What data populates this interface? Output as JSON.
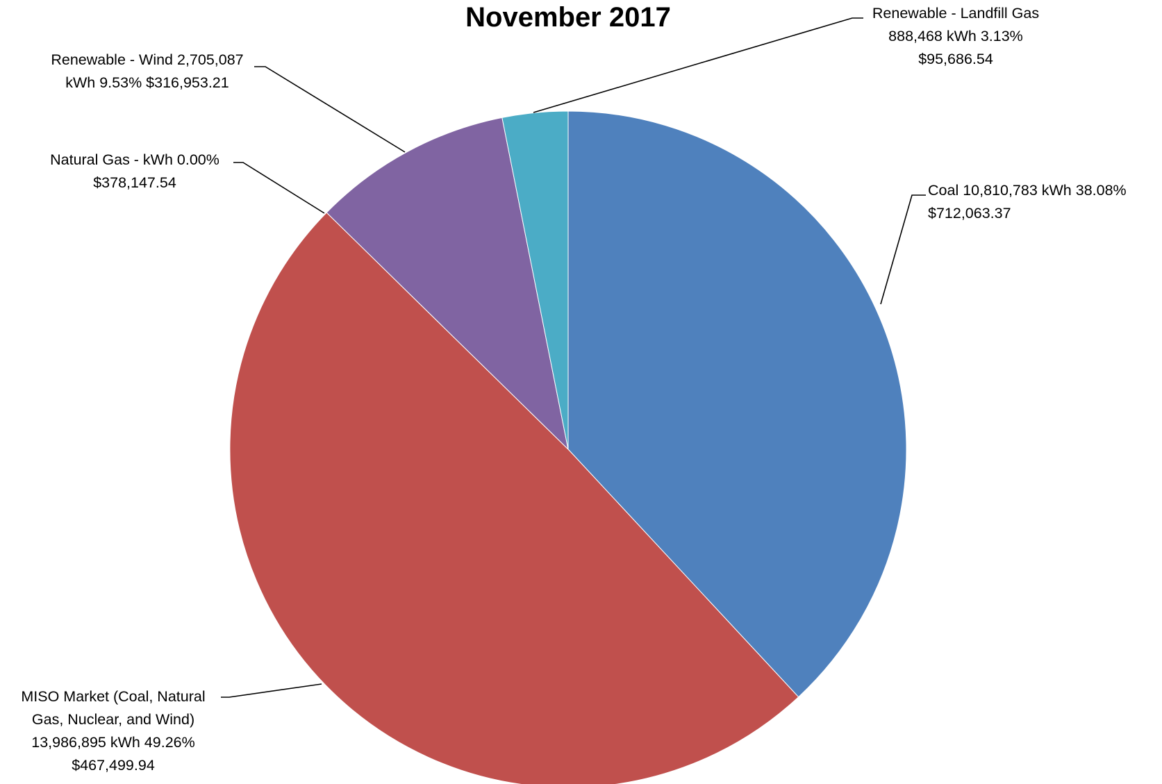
{
  "chart_data": {
    "type": "pie",
    "title": "November 2017",
    "start_angle_deg": 0,
    "direction": "clockwise",
    "slices": [
      {
        "name": "Coal",
        "kwh": 10810783,
        "percent": 38.08,
        "cost": 712063.37,
        "color": "#4F81BD",
        "label_lines": [
          "Coal  10,810,783  kWh 38.08%",
          "$712,063.37"
        ]
      },
      {
        "name": "MISO Market (Coal, Natural Gas, Nuclear, and Wind)",
        "kwh": 13986895,
        "percent": 49.26,
        "cost": 467499.94,
        "color": "#C0504D",
        "label_lines": [
          "MISO Market (Coal, Natural",
          "Gas, Nuclear, and Wind)",
          "13,986,895  kWh 49.26%",
          "$467,499.94"
        ]
      },
      {
        "name": "Natural Gas",
        "kwh": 0,
        "percent": 0.0,
        "cost": 378147.54,
        "color": "#9BBB59",
        "label_lines": [
          "Natural Gas  -  kWh 0.00%",
          "$378,147.54"
        ]
      },
      {
        "name": "Renewable - Wind",
        "kwh": 2705087,
        "percent": 9.53,
        "cost": 316953.21,
        "color": "#8064A2",
        "label_lines": [
          "Renewable - Wind  2,705,087",
          "kWh 9.53%  $316,953.21"
        ]
      },
      {
        "name": "Renewable - Landfill Gas",
        "kwh": 888468,
        "percent": 3.13,
        "cost": 95686.54,
        "color": "#4BACC6",
        "label_lines": [
          "Renewable - Landfill Gas",
          "888,468  kWh 3.13%",
          "$95,686.54"
        ]
      }
    ]
  }
}
